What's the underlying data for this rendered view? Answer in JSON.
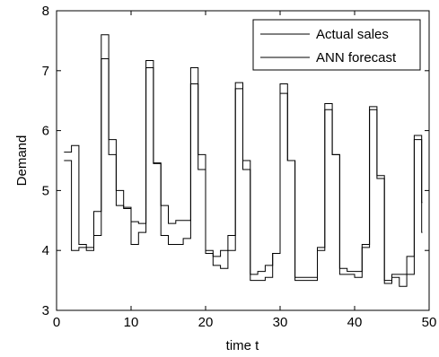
{
  "chart_data": {
    "type": "line",
    "step": true,
    "xlabel": "time t",
    "ylabel": "Demand",
    "xlim": [
      0,
      50
    ],
    "ylim": [
      3,
      8
    ],
    "xticks": [
      0,
      10,
      20,
      30,
      40,
      50
    ],
    "yticks": [
      3,
      4,
      5,
      6,
      7,
      8
    ],
    "grid": false,
    "legend": {
      "position": "top-right",
      "entries": [
        "Actual sales",
        "ANN forecast"
      ]
    },
    "series": [
      {
        "name": "Actual sales",
        "color": "#000000",
        "x": [
          1,
          2,
          3,
          4,
          5,
          6,
          7,
          8,
          9,
          10,
          11,
          12,
          13,
          14,
          15,
          16,
          17,
          18,
          19,
          20,
          21,
          22,
          23,
          24,
          25,
          26,
          27,
          28,
          29,
          30,
          31,
          32,
          33,
          34,
          35,
          36,
          37,
          38,
          39,
          40,
          41,
          42,
          43,
          44,
          45,
          46,
          47,
          48,
          49
        ],
        "values": [
          5.64,
          5.75,
          4.1,
          4.05,
          4.25,
          7.6,
          5.85,
          4.75,
          4.72,
          4.48,
          4.45,
          7.17,
          5.46,
          4.75,
          4.45,
          4.5,
          4.5,
          7.05,
          5.6,
          4.0,
          3.9,
          4.0,
          4.25,
          6.8,
          5.5,
          3.6,
          3.65,
          3.75,
          3.95,
          6.78,
          5.5,
          3.55,
          3.55,
          3.55,
          4.05,
          6.45,
          5.6,
          3.7,
          3.65,
          3.65,
          4.1,
          6.4,
          5.25,
          3.45,
          3.6,
          3.6,
          3.6,
          5.92,
          4.3
        ]
      },
      {
        "name": "ANN forecast",
        "color": "#000000",
        "x": [
          1,
          2,
          3,
          4,
          5,
          6,
          7,
          8,
          9,
          10,
          11,
          12,
          13,
          14,
          15,
          16,
          17,
          18,
          19,
          20,
          21,
          22,
          23,
          24,
          25,
          26,
          27,
          28,
          29,
          30,
          31,
          32,
          33,
          34,
          35,
          36,
          37,
          38,
          39,
          40,
          41,
          42,
          43,
          44,
          45,
          46,
          47,
          48,
          49
        ],
        "values": [
          5.5,
          4.0,
          4.05,
          4.0,
          4.65,
          7.2,
          5.6,
          5.0,
          4.7,
          4.1,
          4.3,
          7.05,
          5.45,
          4.25,
          4.1,
          4.1,
          4.2,
          6.78,
          5.35,
          3.95,
          3.75,
          3.7,
          4.0,
          6.7,
          5.35,
          3.5,
          3.5,
          3.55,
          3.95,
          6.62,
          5.5,
          3.5,
          3.5,
          3.5,
          4.0,
          6.35,
          5.6,
          3.6,
          3.6,
          3.55,
          4.05,
          6.35,
          5.2,
          3.5,
          3.55,
          3.4,
          3.9,
          5.85,
          4.8
        ]
      }
    ]
  }
}
